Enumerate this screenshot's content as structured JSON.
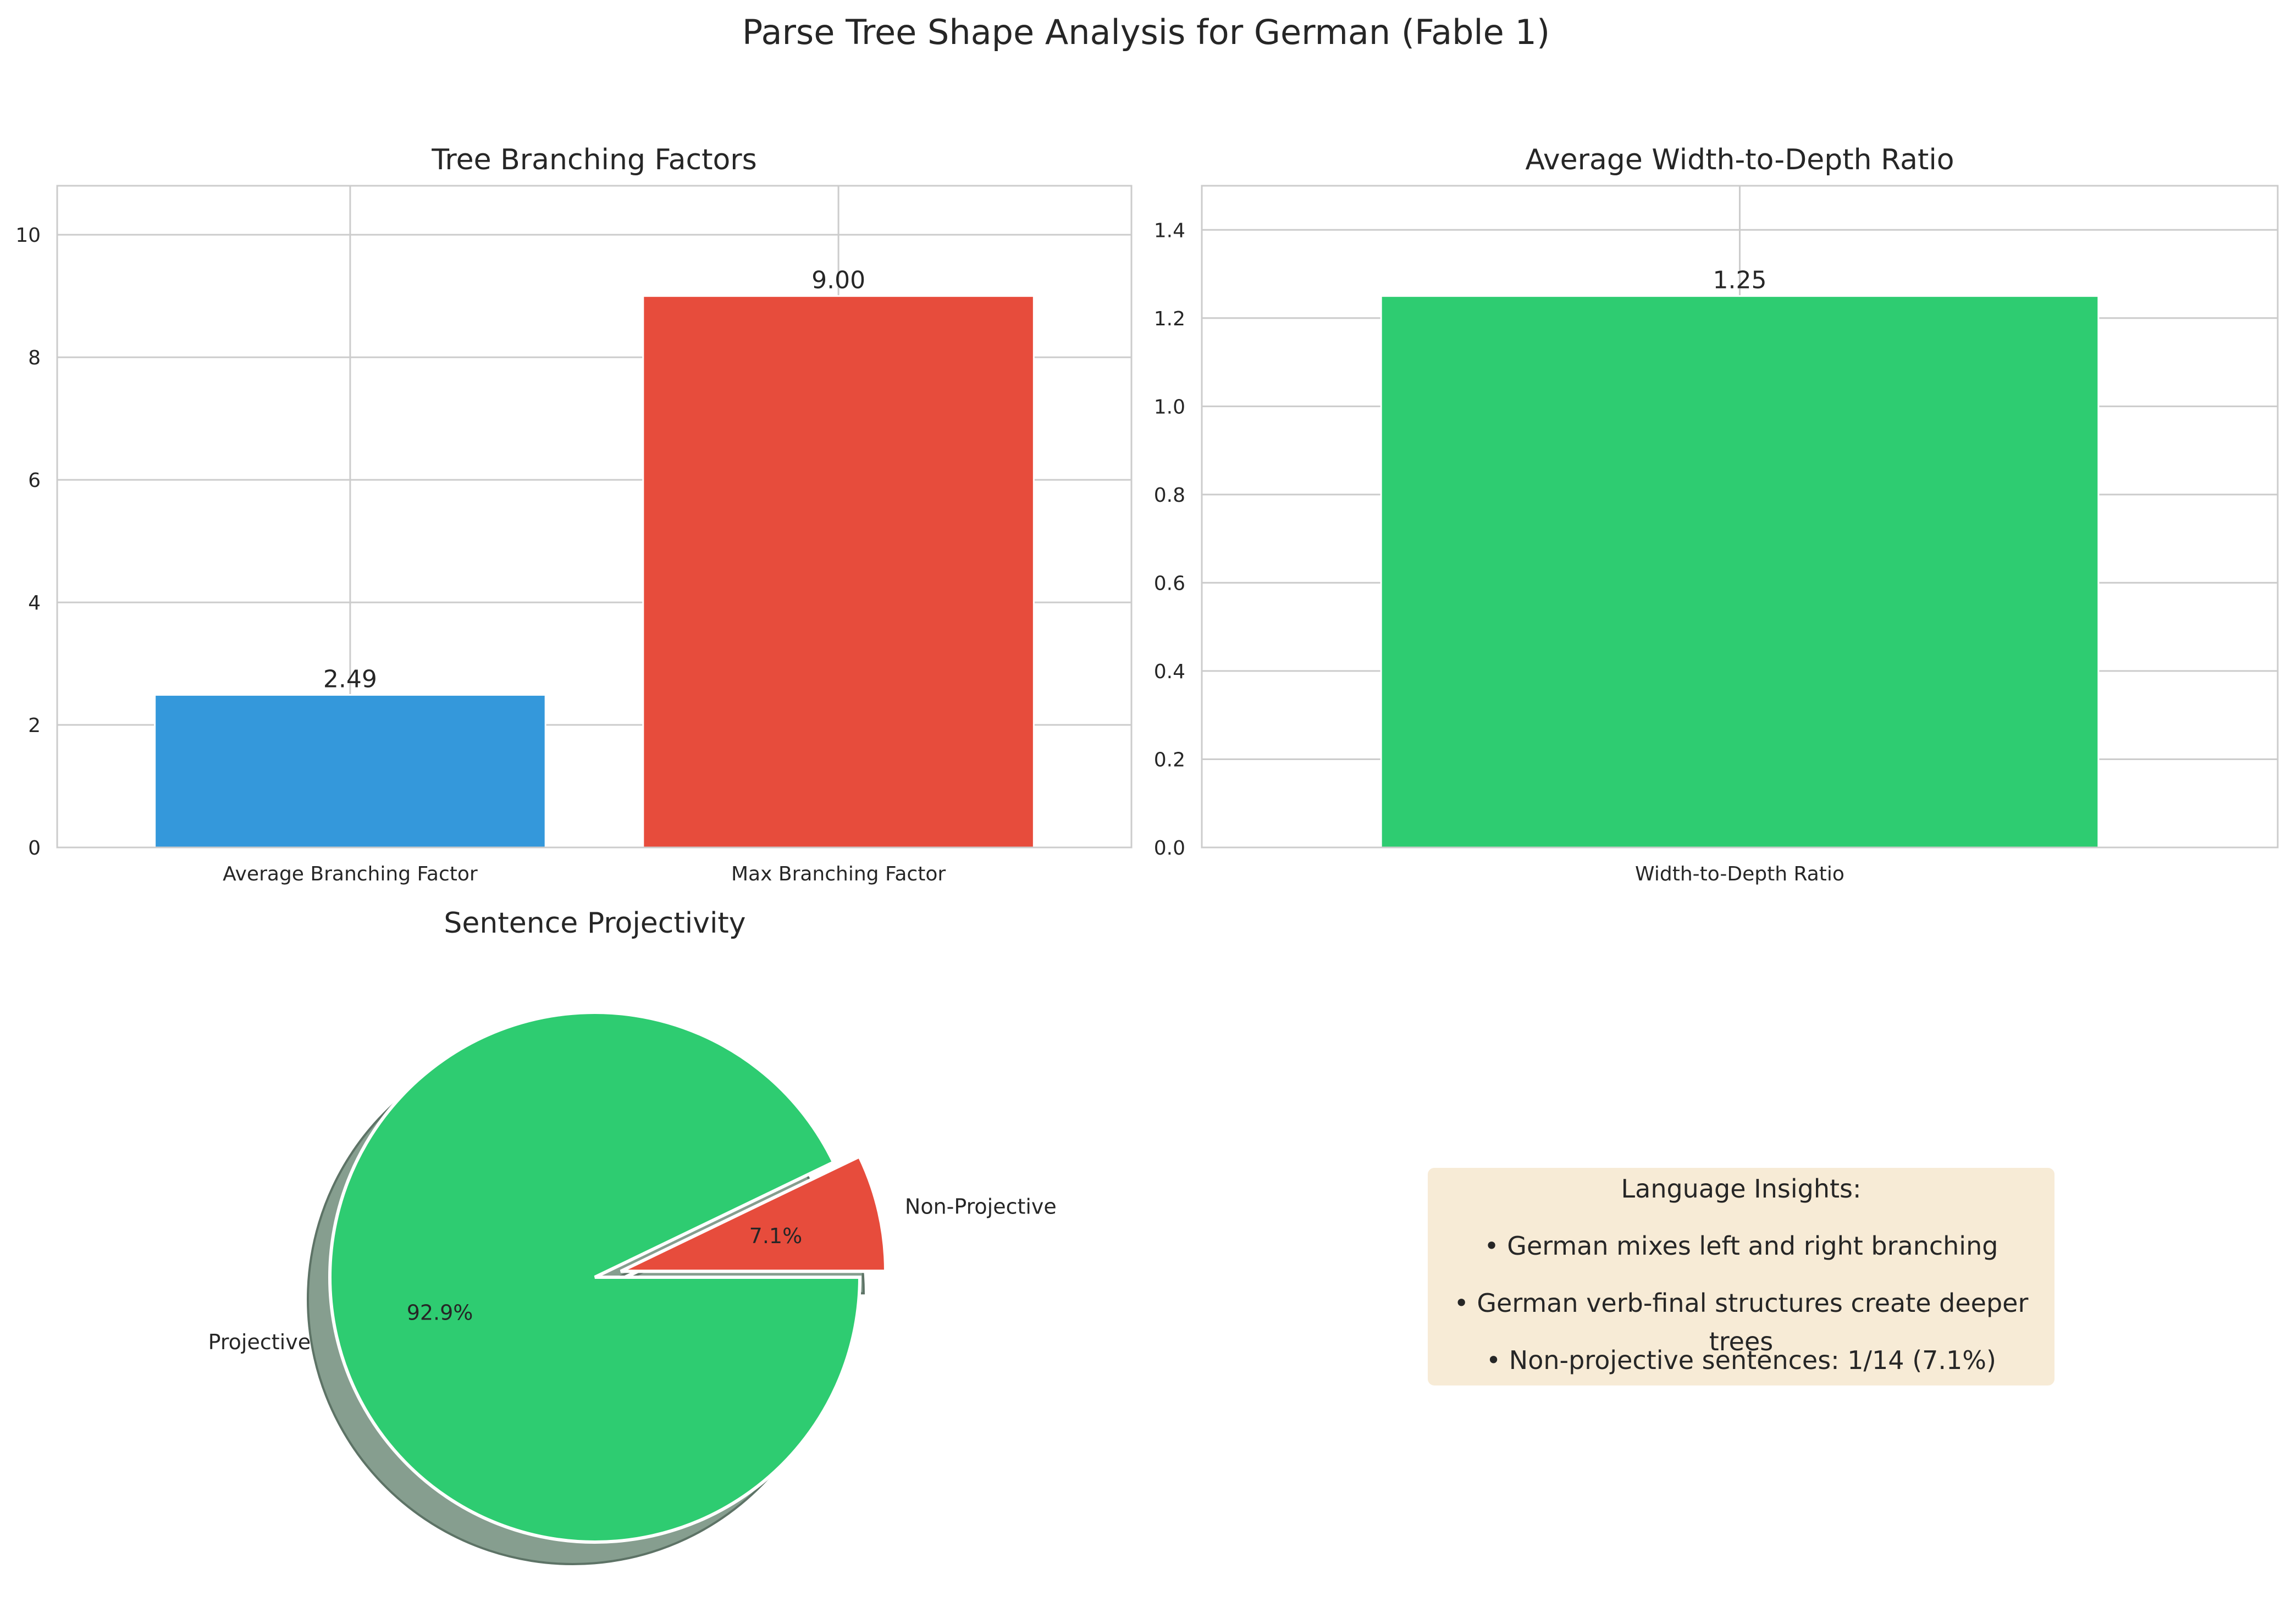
{
  "figure": {
    "title": "Parse Tree Shape Analysis for German (Fable 1)"
  },
  "colors": {
    "blue": "#3498db",
    "red": "#e74c3c",
    "green": "#2ecc71",
    "shadow": "#869e8f",
    "grid": "#cccccc",
    "insight_box": "#f5e6cc"
  },
  "chart_data": [
    {
      "type": "bar",
      "title": "Tree Branching Factors",
      "categories": [
        "Average Branching Factor",
        "Max Branching Factor"
      ],
      "values": [
        2.49,
        9.0
      ],
      "value_labels": [
        "2.49",
        "9.00"
      ],
      "colors": [
        "#3498db",
        "#e74c3c"
      ],
      "ylim": [
        0,
        10.8
      ],
      "yticks": [
        0,
        2,
        4,
        6,
        8,
        10
      ],
      "grid": true
    },
    {
      "type": "bar",
      "title": "Average Width-to-Depth Ratio",
      "categories": [
        "Width-to-Depth Ratio"
      ],
      "values": [
        1.25
      ],
      "value_labels": [
        "1.25"
      ],
      "colors": [
        "#2ecc71"
      ],
      "ylim": [
        0,
        1.5
      ],
      "yticks": [
        "0.0",
        "0.2",
        "0.4",
        "0.6",
        "0.8",
        "1.0",
        "1.2",
        "1.4"
      ],
      "grid": true
    },
    {
      "type": "pie",
      "title": "Sentence Projectivity",
      "labels": [
        "Projective",
        "Non-Projective"
      ],
      "values": [
        13,
        1
      ],
      "percent_labels": [
        "92.9%",
        "7.1%"
      ],
      "colors": [
        "#2ecc71",
        "#e74c3c"
      ],
      "exploded": "Non-Projective",
      "shadow": true
    }
  ],
  "insights": {
    "heading": "Language Insights:",
    "items": [
      "• German mixes left and right branching",
      "• German verb-final structures create deeper trees",
      "• Non-projective sentences: 1/14 (7.1%)"
    ]
  }
}
